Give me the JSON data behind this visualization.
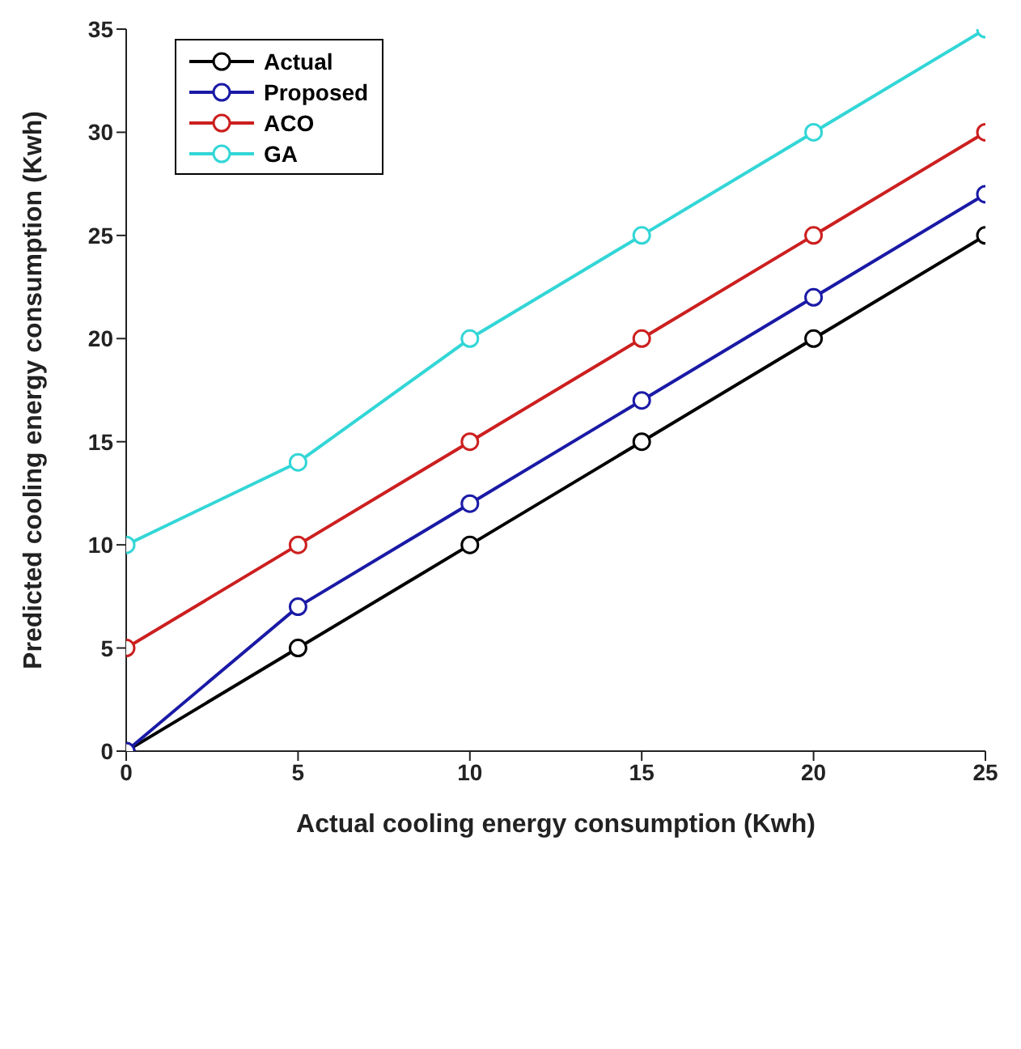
{
  "chart_data": {
    "type": "line",
    "xlabel": "Actual cooling energy consumption (Kwh)",
    "ylabel": "Predicted cooling energy consumption (Kwh)",
    "x": [
      0,
      5,
      10,
      15,
      20,
      25
    ],
    "series": [
      {
        "name": "Actual",
        "color": "#000000",
        "values": [
          0,
          5,
          10,
          15,
          20,
          25
        ]
      },
      {
        "name": "Proposed",
        "color": "#1a1aa6",
        "values": [
          0,
          7,
          12,
          17,
          22,
          27
        ]
      },
      {
        "name": "ACO",
        "color": "#cc1f1f",
        "values": [
          5,
          10,
          15,
          20,
          25,
          30
        ]
      },
      {
        "name": "GA",
        "color": "#33d6d6",
        "values": [
          10,
          14,
          20,
          25,
          30,
          35
        ]
      }
    ],
    "xlim": [
      0,
      25
    ],
    "xticks": [
      0,
      5,
      10,
      15,
      20,
      25
    ],
    "ylim": [
      0,
      35
    ],
    "yticks": [
      0,
      5,
      10,
      15,
      20,
      25,
      30,
      35
    ],
    "grid": false,
    "legend": "top left",
    "marker": "circle",
    "line_style": "solid"
  }
}
